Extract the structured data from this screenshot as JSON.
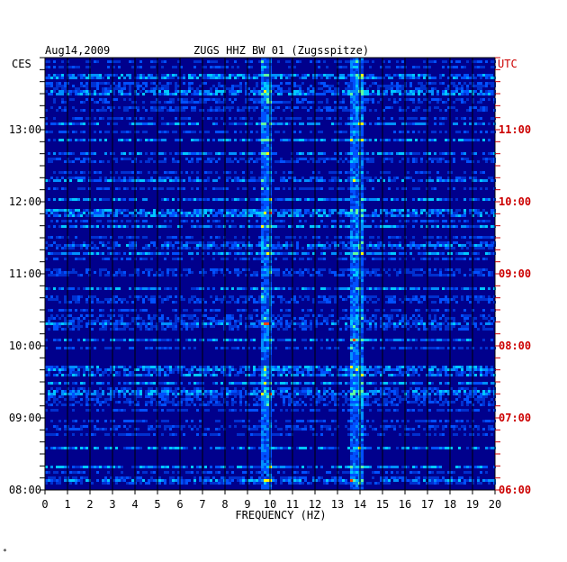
{
  "header": {
    "date": "Aug14,2009",
    "station": "ZUGS HHZ BW 01 (Zugsspitze)",
    "left_tz": "CES",
    "right_tz": "UTC"
  },
  "chart_data": {
    "type": "heatmap",
    "title": "ZUGS HHZ BW 01 (Zugsspitze)",
    "xlabel": "FREQUENCY (HZ)",
    "xlim": [
      0,
      20
    ],
    "x_ticks": [
      "0",
      "1",
      "2",
      "3",
      "4",
      "5",
      "6",
      "7",
      "8",
      "9",
      "10",
      "11",
      "12",
      "13",
      "14",
      "15",
      "16",
      "17",
      "18",
      "19",
      "20"
    ],
    "y_ticks_left": [
      "13:00",
      "12:00",
      "11:00",
      "10:00",
      "09:00",
      "08:00"
    ],
    "y_ticks_right": [
      "11:00",
      "10:00",
      "09:00",
      "08:00",
      "07:00",
      "06:00"
    ],
    "grid": true,
    "colors": {
      "background": "#00008c",
      "low": "#0030d0",
      "mid": "#00c8ff",
      "high": "#ffff00",
      "peak": "#ff4000",
      "right_axis": "#cc0000"
    },
    "persistent_bands_hz": [
      9.8,
      13.8
    ]
  },
  "footer": {
    "mark": "*"
  }
}
